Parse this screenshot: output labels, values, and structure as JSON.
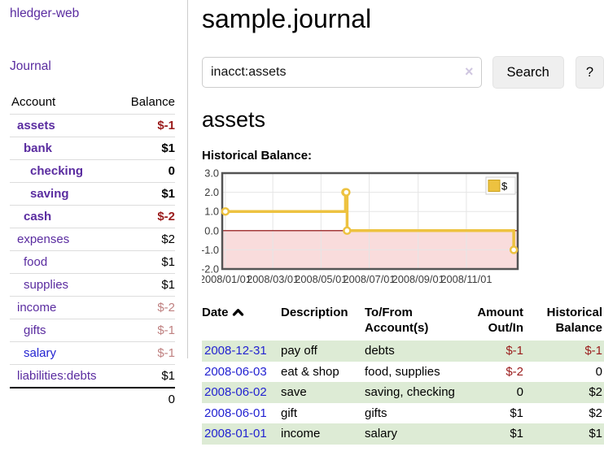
{
  "palette": {
    "link_purple": "#5A2CA0",
    "link_blue": "#2323D1",
    "negative_strong": "#9A1B1B",
    "negative_soft": "#BF8080",
    "row_shade_green": "#DDEBD5",
    "series_yellow": "#EDC240"
  },
  "app": {
    "title": "hledger-web"
  },
  "sidebar": {
    "nav": {
      "journal": "Journal"
    },
    "headers": {
      "account": "Account",
      "balance": "Balance"
    },
    "accounts": [
      {
        "name": "assets",
        "depth": 1,
        "bold": true,
        "balance": "$-1",
        "neg": "strong"
      },
      {
        "name": "bank",
        "depth": 2,
        "bold": true,
        "balance": "$1"
      },
      {
        "name": "checking",
        "depth": 3,
        "bold": true,
        "balance": "0"
      },
      {
        "name": "saving",
        "depth": 3,
        "bold": true,
        "balance": "$1"
      },
      {
        "name": "cash",
        "depth": 2,
        "bold": true,
        "balance": "$-2",
        "neg": "strong"
      },
      {
        "name": "expenses",
        "depth": 1,
        "bold": false,
        "balance": "$2"
      },
      {
        "name": "food",
        "depth": 2,
        "bold": false,
        "balance": "$1"
      },
      {
        "name": "supplies",
        "depth": 2,
        "bold": false,
        "balance": "$1"
      },
      {
        "name": "income",
        "depth": 1,
        "bold": false,
        "balance": "$-2",
        "neg": "soft"
      },
      {
        "name": "gifts",
        "depth": 2,
        "bold": false,
        "balance": "$-1",
        "neg": "soft"
      },
      {
        "name": "salary",
        "depth": 2,
        "bold": false,
        "balance": "$-1",
        "neg": "soft",
        "link": "unvisited"
      },
      {
        "name": "liabilities:debts",
        "depth": 1,
        "bold": false,
        "balance": "$1"
      }
    ],
    "total": "0"
  },
  "header": {
    "title": "sample.journal"
  },
  "search": {
    "value": "inacct:assets",
    "clear_icon": "×",
    "search_button": "Search",
    "help_button": "?"
  },
  "account_page": {
    "heading": "assets",
    "chart_label": "Historical Balance:"
  },
  "chart_data": {
    "type": "line",
    "line_style": "step-after",
    "title": "Historical Balance",
    "series": [
      {
        "name": "$",
        "color": "#EDC240",
        "points": [
          [
            "2008-01-01",
            1
          ],
          [
            "2008-06-01",
            2
          ],
          [
            "2008-06-02",
            2
          ],
          [
            "2008-06-03",
            0
          ],
          [
            "2008-12-31",
            -1
          ]
        ]
      }
    ],
    "x_range": [
      "2007-12-28",
      "2009-01-05"
    ],
    "y_range": [
      -2,
      3
    ],
    "x_ticks": [
      {
        "t": "2008-01-01",
        "label": "2008/01/01"
      },
      {
        "t": "2008-03-01",
        "label": "2008/03/01"
      },
      {
        "t": "2008-05-01",
        "label": "2008/05/01"
      },
      {
        "t": "2008-07-01",
        "label": "2008/07/01"
      },
      {
        "t": "2008-09-01",
        "label": "2008/09/01"
      },
      {
        "t": "2008-11-01",
        "label": "2008/11/01"
      }
    ],
    "y_ticks": [
      {
        "v": 3,
        "label": "3.0"
      },
      {
        "v": 2,
        "label": "2.0"
      },
      {
        "v": 1,
        "label": "1.0"
      },
      {
        "v": 0,
        "label": "0.0"
      },
      {
        "v": -1,
        "label": "-1.0"
      },
      {
        "v": -2,
        "label": "-2.0"
      }
    ],
    "grid": true,
    "legend": {
      "label": "$",
      "position": "top-right"
    },
    "colors": {
      "grid": "#E5E5E5",
      "border": "#545454",
      "negative_fill": "#F9DCDC",
      "zero_line": "#8B0000",
      "marker_fill": "#FFFFFF",
      "legend_border": "#CCCCCC",
      "legend_swatch_border": "#CBA21D"
    }
  },
  "transactions": {
    "headers": {
      "date": "Date",
      "description": "Description",
      "accounts": "To/From Account(s)",
      "amount": "Amount Out/In",
      "balance": "Historical Balance"
    },
    "rows": [
      {
        "date": "2008-12-31",
        "description": "pay off",
        "accounts": "debts",
        "amount": "$-1",
        "amount_neg": true,
        "balance": "$-1",
        "balance_neg": true,
        "shade": true
      },
      {
        "date": "2008-06-03",
        "description": "eat & shop",
        "accounts": "food, supplies",
        "amount": "$-2",
        "amount_neg": true,
        "balance": "0",
        "balance_neg": false,
        "shade": false
      },
      {
        "date": "2008-06-02",
        "description": "save",
        "accounts": "saving, checking",
        "amount": "0",
        "amount_neg": false,
        "balance": "$2",
        "balance_neg": false,
        "shade": true
      },
      {
        "date": "2008-06-01",
        "description": "gift",
        "accounts": "gifts",
        "amount": "$1",
        "amount_neg": false,
        "balance": "$2",
        "balance_neg": false,
        "shade": false
      },
      {
        "date": "2008-01-01",
        "description": "income",
        "accounts": "salary",
        "amount": "$1",
        "amount_neg": false,
        "balance": "$1",
        "balance_neg": false,
        "shade": true
      }
    ]
  }
}
